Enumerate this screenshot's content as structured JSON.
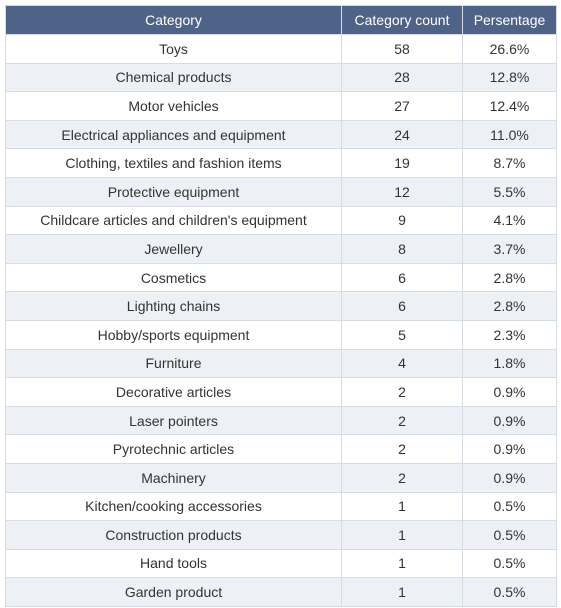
{
  "chart_data": {
    "type": "table",
    "columns": [
      "Category",
      "Category count",
      "Persentage"
    ],
    "rows": [
      {
        "category": "Toys",
        "count": "58",
        "percentage": "26.6%"
      },
      {
        "category": "Chemical products",
        "count": "28",
        "percentage": "12.8%"
      },
      {
        "category": "Motor vehicles",
        "count": "27",
        "percentage": "12.4%"
      },
      {
        "category": "Electrical appliances and equipment",
        "count": "24",
        "percentage": "11.0%"
      },
      {
        "category": "Clothing, textiles and fashion items",
        "count": "19",
        "percentage": "8.7%"
      },
      {
        "category": "Protective equipment",
        "count": "12",
        "percentage": "5.5%"
      },
      {
        "category": "Childcare articles and children's equipment",
        "count": "9",
        "percentage": "4.1%"
      },
      {
        "category": "Jewellery",
        "count": "8",
        "percentage": "3.7%"
      },
      {
        "category": "Cosmetics",
        "count": "6",
        "percentage": "2.8%"
      },
      {
        "category": "Lighting chains",
        "count": "6",
        "percentage": "2.8%"
      },
      {
        "category": "Hobby/sports equipment",
        "count": "5",
        "percentage": "2.3%"
      },
      {
        "category": "Furniture",
        "count": "4",
        "percentage": "1.8%"
      },
      {
        "category": "Decorative articles",
        "count": "2",
        "percentage": "0.9%"
      },
      {
        "category": "Laser pointers",
        "count": "2",
        "percentage": "0.9%"
      },
      {
        "category": "Pyrotechnic articles",
        "count": "2",
        "percentage": "0.9%"
      },
      {
        "category": "Machinery",
        "count": "2",
        "percentage": "0.9%"
      },
      {
        "category": "Kitchen/cooking accessories",
        "count": "1",
        "percentage": "0.5%"
      },
      {
        "category": "Construction products",
        "count": "1",
        "percentage": "0.5%"
      },
      {
        "category": "Hand tools",
        "count": "1",
        "percentage": "0.5%"
      },
      {
        "category": "Garden product",
        "count": "1",
        "percentage": "0.5%"
      }
    ]
  },
  "colors": {
    "header_bg": "#4f6388",
    "header_text": "#ffffff",
    "stripe": "#edf0f5",
    "border": "#d6dce4",
    "text": "#333333"
  }
}
